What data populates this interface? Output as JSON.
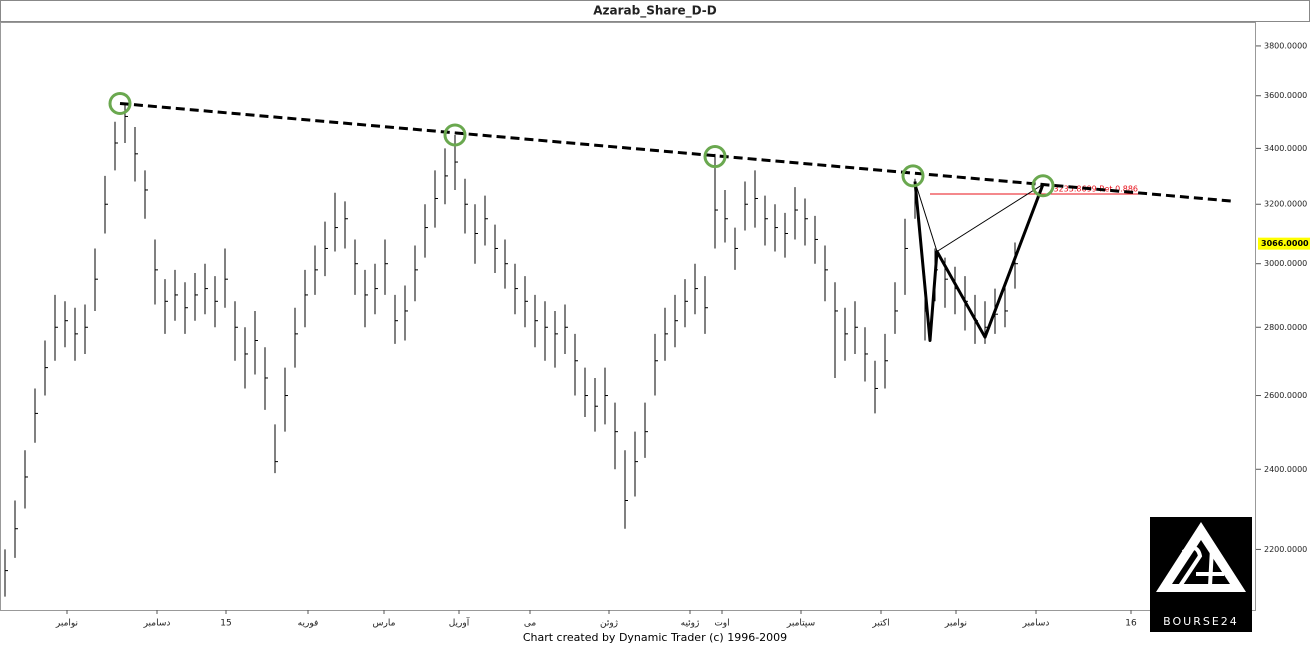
{
  "chart_data": {
    "type": "ohlc",
    "title": "Azarab_Share_D-D",
    "credit": "Chart created by Dynamic Trader  (c) 1996-2009",
    "logo": "BOURSE24",
    "log": true,
    "xlim": [
      0,
      251.2
    ],
    "ylim": [
      2060,
      3900
    ],
    "yticks": [
      {
        "value": 2200,
        "label": "2200.0000"
      },
      {
        "value": 2400,
        "label": "2400.0000"
      },
      {
        "value": 2600,
        "label": "2600.0000"
      },
      {
        "value": 2800,
        "label": "2800.0000"
      },
      {
        "value": 3000,
        "label": "3000.0000"
      },
      {
        "value": 3200,
        "label": "3200.0000"
      },
      {
        "value": 3400,
        "label": "3400.0000"
      },
      {
        "value": 3600,
        "label": "3600.0000"
      },
      {
        "value": 3800,
        "label": "3800.0000"
      }
    ],
    "xticks": [
      {
        "value": 13.4,
        "label": "نوامبر"
      },
      {
        "value": 31.4,
        "label": "دسامبر"
      },
      {
        "value": 45.2,
        "label": "15"
      },
      {
        "value": 61.6,
        "label": "فوریه"
      },
      {
        "value": 76.8,
        "label": "مارس"
      },
      {
        "value": 91.8,
        "label": "آوریل"
      },
      {
        "value": 106,
        "label": "می"
      },
      {
        "value": 121.8,
        "label": "ژوئن"
      },
      {
        "value": 138,
        "label": "ژوئیه"
      },
      {
        "value": 144.4,
        "label": "اوت"
      },
      {
        "value": 160.2,
        "label": "سپتامبر"
      },
      {
        "value": 176.2,
        "label": "اکتبر"
      },
      {
        "value": 191.2,
        "label": "نوامبر"
      },
      {
        "value": 207.2,
        "label": "دسامبر"
      },
      {
        "value": 226.2,
        "label": "16"
      }
    ],
    "x": [
      1,
      3,
      5,
      7,
      9,
      11,
      13,
      15,
      17,
      19,
      21,
      23,
      25,
      27,
      29,
      31,
      33,
      35,
      37,
      39,
      41,
      43,
      45,
      47,
      49,
      51,
      53,
      55,
      57,
      59,
      61,
      63,
      65,
      67,
      69,
      71,
      73,
      75,
      77,
      79,
      81,
      83,
      85,
      87,
      89,
      91,
      93,
      95,
      97,
      99,
      101,
      103,
      105,
      107,
      109,
      111,
      113,
      115,
      117,
      119,
      121,
      123,
      125,
      127,
      129,
      131,
      133,
      135,
      137,
      139,
      141,
      143,
      145,
      147,
      149,
      151,
      153,
      155,
      157,
      159,
      161,
      163,
      165,
      167,
      169,
      171,
      173,
      175,
      177,
      179,
      181,
      183,
      185,
      187,
      189,
      191,
      193,
      195,
      197,
      199,
      201,
      203
    ],
    "high": [
      2200,
      2320,
      2450,
      2620,
      2760,
      2900,
      2880,
      2860,
      2870,
      3050,
      3300,
      3500,
      3570,
      3480,
      3320,
      3080,
      2950,
      2980,
      2940,
      2970,
      3000,
      2960,
      3050,
      2880,
      2800,
      2850,
      2740,
      2520,
      2680,
      2860,
      2980,
      3060,
      3140,
      3240,
      3210,
      3080,
      2980,
      3000,
      3080,
      2900,
      2930,
      3060,
      3200,
      3320,
      3400,
      3450,
      3290,
      3200,
      3230,
      3130,
      3080,
      3000,
      2960,
      2900,
      2880,
      2850,
      2870,
      2780,
      2680,
      2650,
      2680,
      2580,
      2450,
      2500,
      2580,
      2780,
      2860,
      2900,
      2950,
      3000,
      2960,
      3380,
      3250,
      3120,
      3280,
      3320,
      3230,
      3200,
      3170,
      3260,
      3220,
      3160,
      3060,
      2940,
      2860,
      2880,
      2800,
      2700,
      2780,
      2940,
      3150,
      3290,
      2960,
      3050,
      3020,
      2990,
      2960,
      2900,
      2880,
      2920,
      2930,
      3070
    ],
    "low": [
      2090,
      2180,
      2300,
      2470,
      2600,
      2700,
      2740,
      2700,
      2720,
      2850,
      3100,
      3320,
      3420,
      3280,
      3150,
      2870,
      2780,
      2820,
      2780,
      2820,
      2840,
      2800,
      2860,
      2700,
      2620,
      2660,
      2560,
      2390,
      2500,
      2680,
      2800,
      2900,
      2960,
      3040,
      3050,
      2900,
      2800,
      2840,
      2900,
      2750,
      2760,
      2880,
      3020,
      3120,
      3200,
      3250,
      3100,
      3000,
      3060,
      2970,
      2920,
      2840,
      2800,
      2740,
      2700,
      2680,
      2720,
      2600,
      2540,
      2500,
      2520,
      2400,
      2250,
      2330,
      2430,
      2600,
      2700,
      2740,
      2800,
      2840,
      2780,
      3050,
      3070,
      2980,
      3110,
      3120,
      3060,
      3040,
      3020,
      3080,
      3060,
      3000,
      2880,
      2650,
      2700,
      2720,
      2640,
      2550,
      2620,
      2780,
      2900,
      3150,
      2760,
      2880,
      2860,
      2840,
      2790,
      2750,
      2750,
      2780,
      2800,
      2920
    ],
    "close": [
      2150,
      2250,
      2380,
      2550,
      2680,
      2800,
      2820,
      2780,
      2800,
      2950,
      3200,
      3420,
      3520,
      3380,
      3250,
      2980,
      2880,
      2900,
      2860,
      2900,
      2920,
      2880,
      2950,
      2800,
      2720,
      2760,
      2650,
      2420,
      2600,
      2780,
      2900,
      2980,
      3050,
      3120,
      3150,
      3000,
      2900,
      2920,
      3000,
      2820,
      2850,
      2980,
      3120,
      3220,
      3300,
      3350,
      3200,
      3100,
      3150,
      3050,
      3000,
      2920,
      2880,
      2820,
      2800,
      2780,
      2800,
      2700,
      2600,
      2570,
      2600,
      2500,
      2320,
      2420,
      2500,
      2700,
      2780,
      2820,
      2880,
      2920,
      2860,
      3180,
      3150,
      3050,
      3200,
      3220,
      3150,
      3120,
      3100,
      3180,
      3150,
      3080,
      2980,
      2850,
      2780,
      2800,
      2720,
      2620,
      2700,
      2850,
      3050,
      3250,
      2850,
      2980,
      2950,
      2920,
      2880,
      2820,
      2800,
      2840,
      2850,
      3000
    ],
    "color": "#000000",
    "trendline": {
      "x": [
        24,
        247
      ],
      "y": [
        3570,
        3210
      ],
      "color": "#000000"
    },
    "pivots": {
      "x": [
        24,
        91,
        143,
        182.6,
        208.6
      ],
      "y": [
        3570,
        3450,
        3370,
        3300,
        3265
      ],
      "color": "#6aa84f"
    },
    "pattern": {
      "x": [
        183,
        186,
        187.4,
        197,
        208.6
      ],
      "y": [
        3280,
        2760,
        3040,
        2770,
        3270
      ],
      "color": "#000000"
    },
    "retracement": {
      "x": [
        186,
        228
      ],
      "value": 3235.8699,
      "label": "3235.8699 Ret 0.886",
      "color": "#e8101a"
    },
    "last_price": {
      "value": 3066,
      "label": "3066.0000",
      "color": "#ffff00"
    }
  }
}
